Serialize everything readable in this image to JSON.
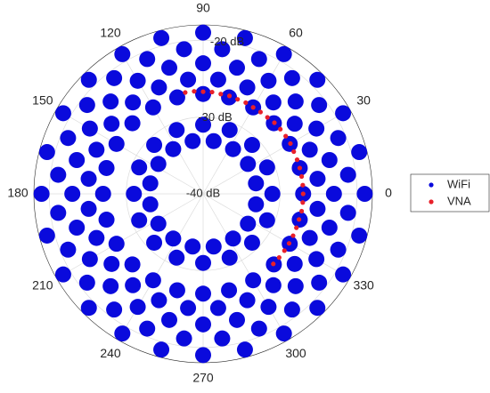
{
  "chart_data": {
    "type": "polar-scatter",
    "rlim": [
      -40,
      -18
    ],
    "rticks": [
      {
        "value": -40,
        "label": "-40 dB"
      },
      {
        "value": -30,
        "label": "-30 dB"
      },
      {
        "value": -20,
        "label": "-20 dB"
      }
    ],
    "thetaticks": [
      0,
      30,
      60,
      90,
      120,
      150,
      180,
      210,
      240,
      270,
      300,
      330
    ],
    "grid": true,
    "legend": "right",
    "series": [
      {
        "name": "WiFi",
        "color": "#0a0adc",
        "theta": [
          0,
          15,
          30,
          45,
          60,
          75,
          90,
          105,
          120,
          135,
          150,
          165,
          180,
          195,
          210,
          225,
          240,
          255,
          270,
          285,
          300,
          315,
          330,
          345,
          7.5,
          22.5,
          37.5,
          52.5,
          67.5,
          82.5,
          97.5,
          112.5,
          127.5,
          142.5,
          157.5,
          172.5,
          187.5,
          202.5,
          217.5,
          232.5,
          247.5,
          262.5,
          277.5,
          292.5,
          307.5,
          322.5,
          337.5,
          352.5,
          0,
          15,
          30,
          45,
          60,
          75,
          90,
          105,
          120,
          135,
          150,
          165,
          180,
          195,
          210,
          225,
          240,
          255,
          270,
          285,
          300,
          315,
          330,
          345,
          7.5,
          22.5,
          37.5,
          52.5,
          67.5,
          82.5,
          97.5,
          112.5,
          127.5,
          142.5,
          157.5,
          172.5,
          187.5,
          202.5,
          217.5,
          232.5,
          247.5,
          262.5,
          277.5,
          292.5,
          307.5,
          322.5,
          337.5,
          352.5,
          0,
          15,
          30,
          45,
          60,
          75,
          90,
          105,
          120,
          135,
          150,
          165,
          180,
          195,
          210,
          225,
          240,
          255,
          270,
          285,
          300,
          315,
          330,
          345,
          0,
          22.5,
          45,
          67.5,
          90,
          112.5,
          135,
          157.5,
          180,
          202.5,
          225,
          247.5,
          270,
          292.5,
          315,
          337.5,
          11.25,
          33.75,
          56.25,
          78.75,
          101.25,
          123.75,
          146.25,
          168.75,
          191.25,
          213.75,
          236.25,
          258.75,
          281.25,
          303.75,
          326.25,
          348.75
        ],
        "r": [
          -19,
          -19,
          -19,
          -19,
          -19,
          -19,
          -19,
          -19,
          -19,
          -19,
          -19,
          -19,
          -19,
          -19,
          -19,
          -19,
          -19,
          -19,
          -19,
          -19,
          -19,
          -19,
          -19,
          -19,
          -21,
          -21,
          -21,
          -21,
          -21,
          -21,
          -21,
          -21,
          -21,
          -21,
          -21,
          -21,
          -21,
          -21,
          -21,
          -21,
          -21,
          -21,
          -21,
          -21,
          -21,
          -21,
          -21,
          -21,
          -23,
          -23,
          -23,
          -23,
          -23,
          -23,
          -23,
          -23,
          -23,
          -23,
          -23,
          -23,
          -23,
          -23,
          -23,
          -23,
          -23,
          -23,
          -23,
          -23,
          -23,
          -23,
          -23,
          -23,
          -25,
          -25,
          -25,
          -25,
          -25,
          -25,
          -25,
          -25,
          -25,
          -25,
          -25,
          -25,
          -25,
          -25,
          -25,
          -25,
          -25,
          -25,
          -25,
          -25,
          -25,
          -25,
          -25,
          -25,
          -27,
          -27,
          -27,
          -27,
          -27,
          -27,
          -27,
          -27,
          -27,
          -27,
          -27,
          -27,
          -27,
          -27,
          -27,
          -27,
          -27,
          -27,
          -27,
          -27,
          -27,
          -27,
          -27,
          -27,
          -31,
          -31,
          -31,
          -31,
          -31,
          -31,
          -31,
          -31,
          -31,
          -31,
          -31,
          -31,
          -31,
          -31,
          -31,
          -31,
          -33,
          -33,
          -33,
          -33,
          -33,
          -33,
          -33,
          -33,
          -33,
          -33,
          -33,
          -33,
          -33,
          -33,
          -33,
          -33
        ]
      },
      {
        "name": "VNA",
        "color": "#e8202a",
        "theta": [
          100,
          95,
          90,
          85,
          80,
          75,
          70,
          65,
          60,
          55,
          50,
          45,
          40,
          35,
          30,
          25,
          20,
          15,
          10,
          5,
          0,
          355,
          350,
          345,
          340,
          335,
          330,
          325,
          320,
          315
        ],
        "r": [
          -26.6,
          -26.6,
          -26.7,
          -26.7,
          -26.8,
          -26.8,
          -26.9,
          -26.9,
          -27,
          -27,
          -27,
          -26.9,
          -26.9,
          -26.9,
          -26.9,
          -27,
          -27,
          -27,
          -27,
          -27,
          -27,
          -27,
          -27,
          -27.1,
          -27.1,
          -27.1,
          -27.1,
          -27.1,
          -27.1,
          -27.1
        ]
      }
    ]
  }
}
